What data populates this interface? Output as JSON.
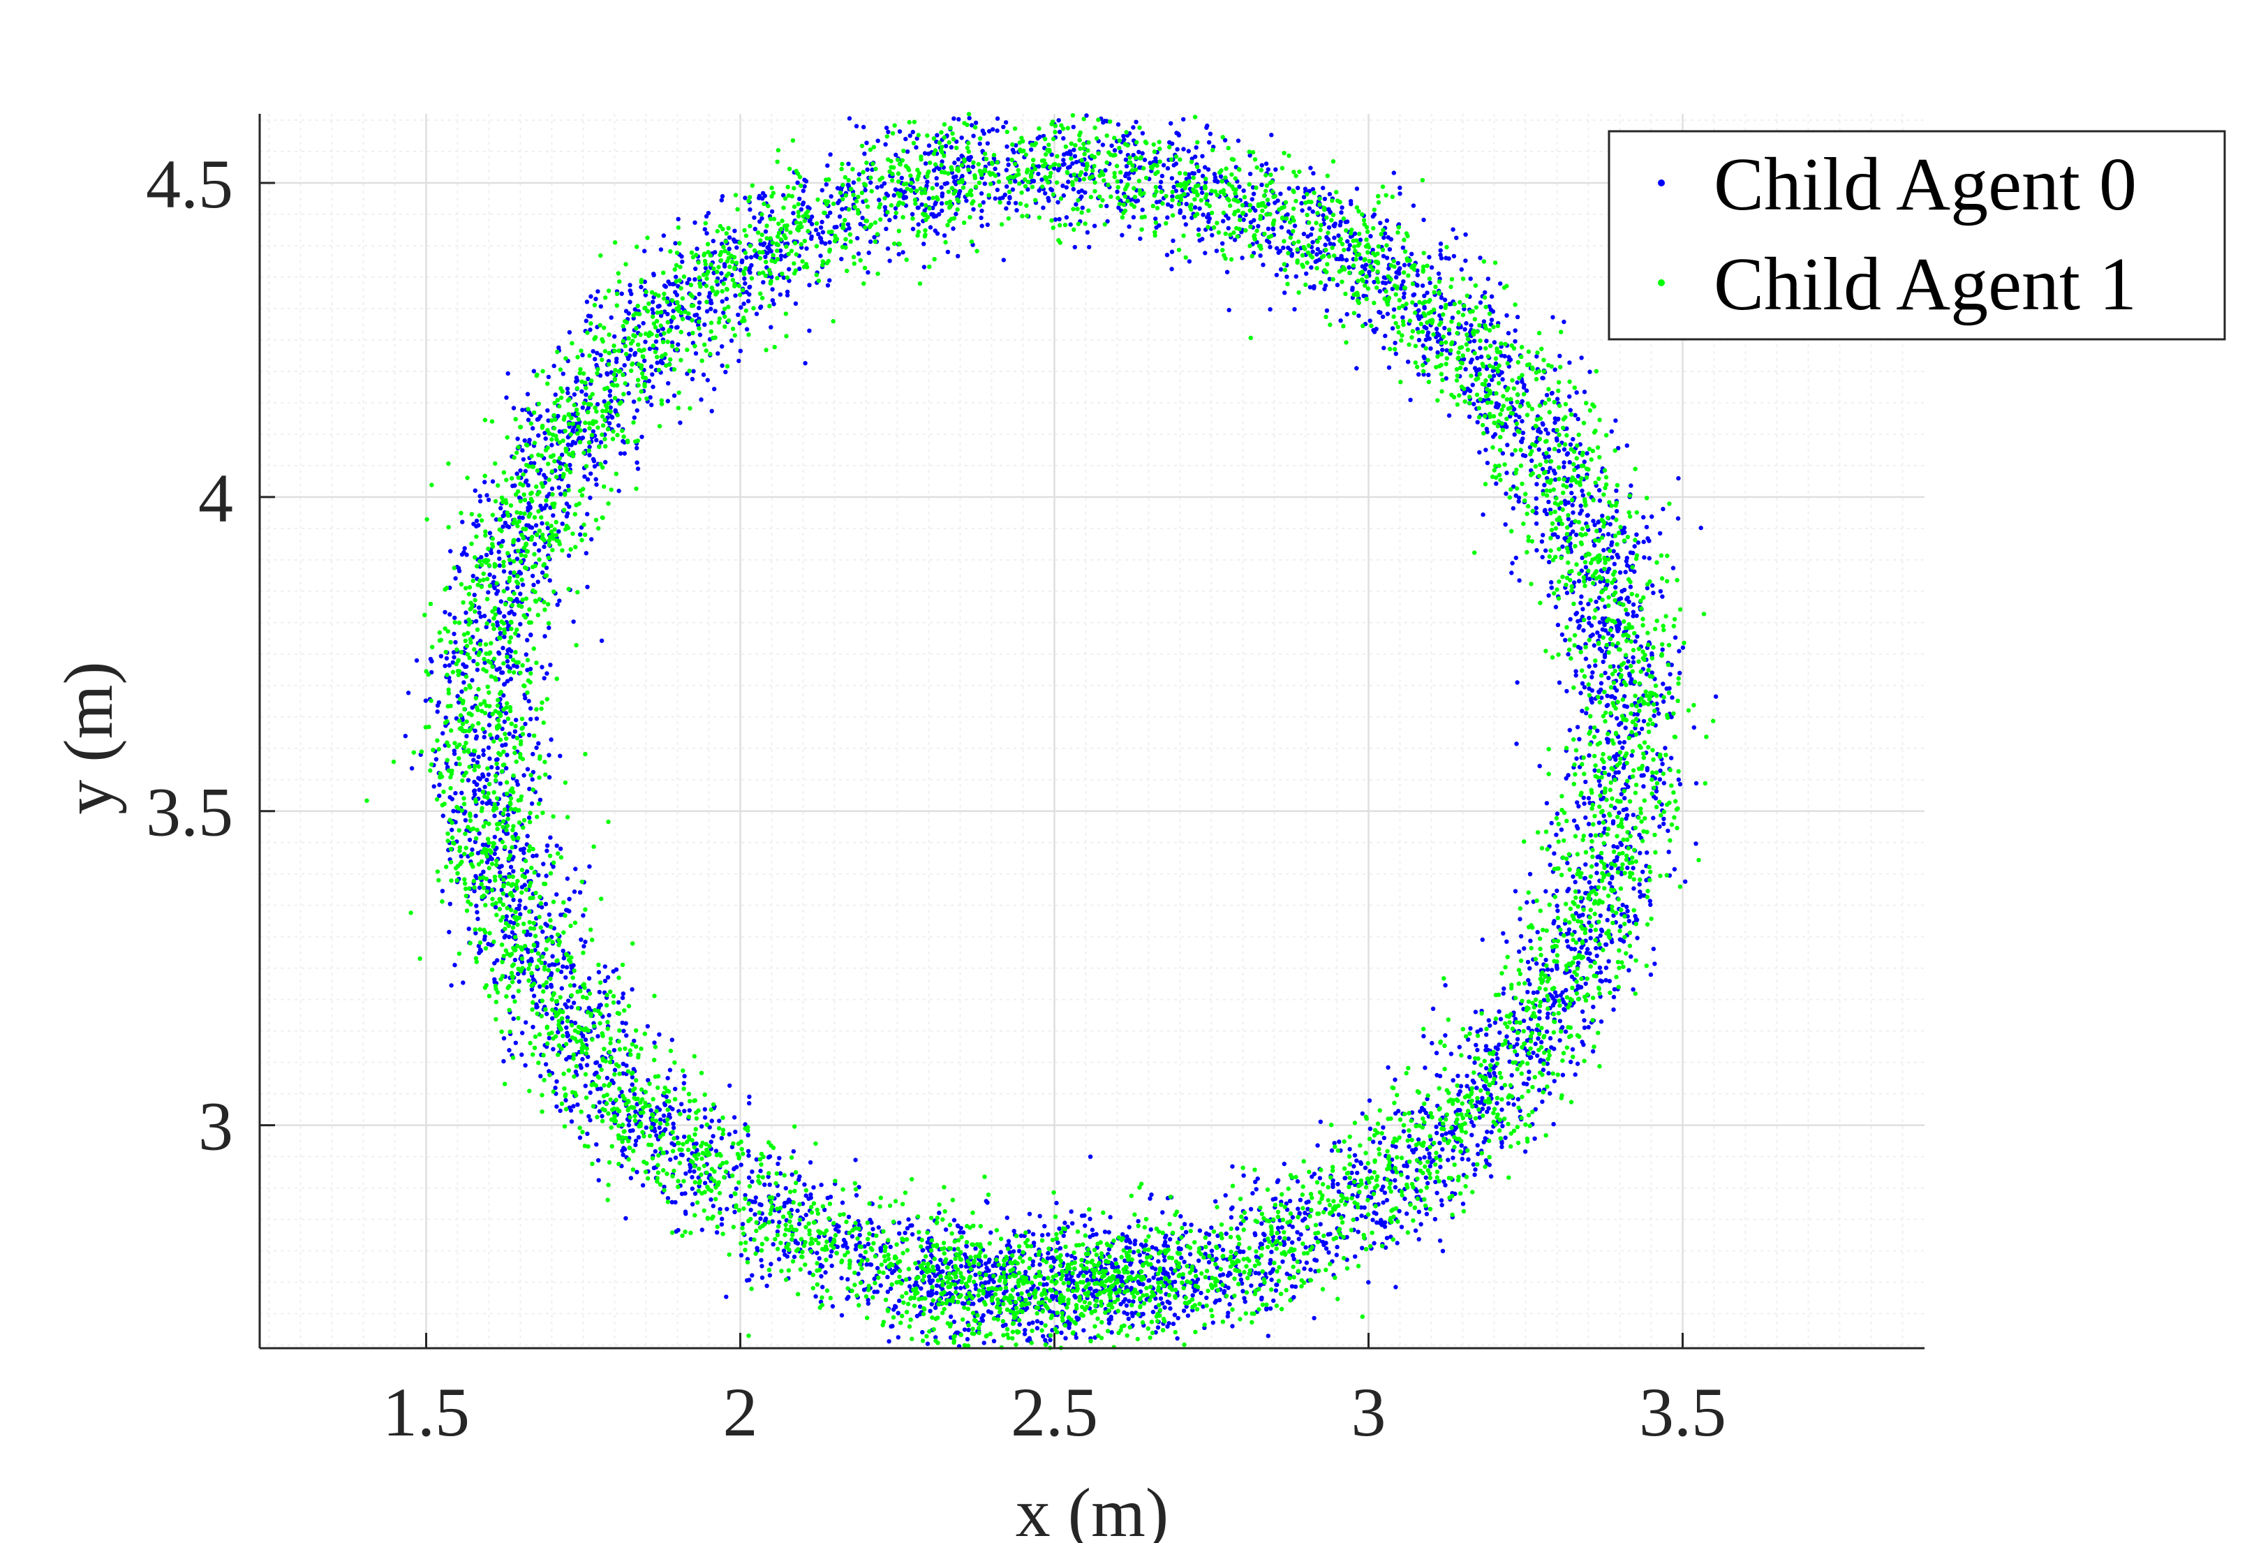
{
  "chart_data": {
    "type": "scatter",
    "title": "",
    "xlabel": "x (m)",
    "ylabel": "y (m)",
    "xlim": [
      1.235,
      3.885
    ],
    "ylim": [
      2.645,
      4.61
    ],
    "xticks": [
      1.5,
      2,
      2.5,
      3,
      3.5
    ],
    "xtick_labels": [
      "1.5",
      "2",
      "2.5",
      "3",
      "3.5"
    ],
    "yticks": [
      3,
      3.5,
      4,
      4.5
    ],
    "ytick_labels": [
      "3",
      "3.5",
      "4",
      "4.5"
    ],
    "grid": true,
    "minor_grid": true,
    "legend_position": "top-right",
    "colors": {
      "axis": "#262626",
      "grid": "#dfdfdf",
      "minor_grid": "#efefef"
    },
    "series": [
      {
        "name": "Child Agent 0",
        "color": "#0000ff",
        "distribution": "noisy circular trajectory (ring)",
        "center": [
          2.5,
          3.63
        ],
        "radius_x": 0.91,
        "radius_y": 0.89,
        "band_halfwidth": 0.09,
        "x_range": [
          1.54,
          3.57
        ],
        "y_range": [
          2.65,
          4.61
        ],
        "n_points_approx": 9000
      },
      {
        "name": "Child Agent 1",
        "color": "#00ff00",
        "distribution": "noisy circular trajectory (ring)",
        "center": [
          2.5,
          3.63
        ],
        "radius_x": 0.91,
        "radius_y": 0.89,
        "band_halfwidth": 0.09,
        "x_range": [
          1.52,
          3.6
        ],
        "y_range": [
          2.66,
          4.61
        ],
        "n_points_approx": 9000
      }
    ]
  }
}
